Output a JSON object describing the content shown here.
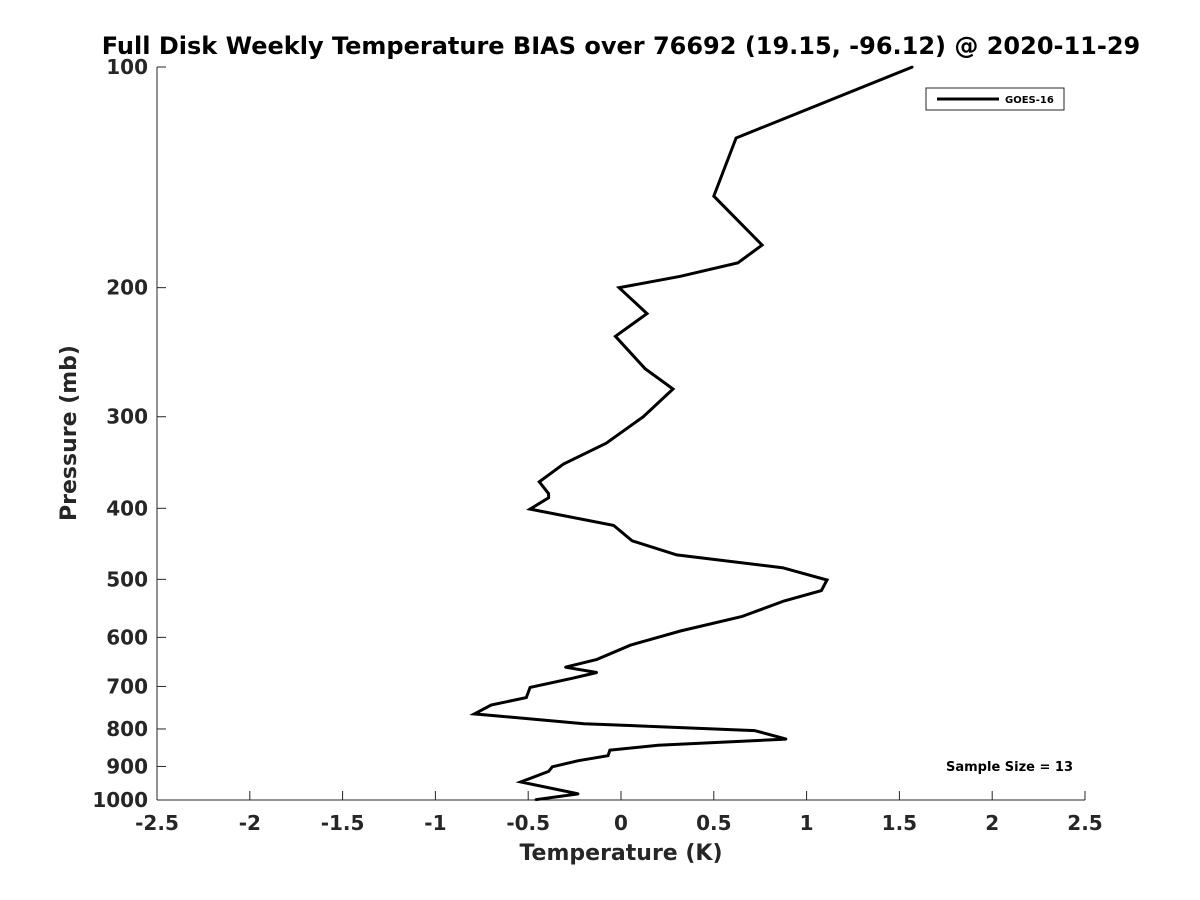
{
  "chart_data": {
    "type": "line",
    "title": "Full Disk Weekly Temperature BIAS over 76692 (19.15, -96.12) @ 2020-11-29",
    "xlabel": "Temperature (K)",
    "ylabel": "Pressure (mb)",
    "xlim": [
      -2.5,
      2.5
    ],
    "ylim": [
      100,
      1000
    ],
    "y_scale": "log",
    "y_reversed": true,
    "grid": false,
    "legend_position": "top-right",
    "x_ticks": [
      "-2.5",
      "-2",
      "-1.5",
      "-1",
      "-0.5",
      "0",
      "0.5",
      "1",
      "1.5",
      "2",
      "2.5"
    ],
    "y_ticks": [
      "100",
      "200",
      "300",
      "400",
      "500",
      "600",
      "700",
      "800",
      "900",
      "1000"
    ],
    "series": [
      {
        "name": "GOES-16",
        "color": "#000000",
        "points": [
          {
            "x": 1.57,
            "y": 100
          },
          {
            "x": 0.62,
            "y": 125
          },
          {
            "x": 0.5,
            "y": 150
          },
          {
            "x": 0.76,
            "y": 175
          },
          {
            "x": 0.63,
            "y": 185
          },
          {
            "x": 0.32,
            "y": 193
          },
          {
            "x": -0.01,
            "y": 200
          },
          {
            "x": 0.14,
            "y": 217
          },
          {
            "x": -0.03,
            "y": 233
          },
          {
            "x": 0.13,
            "y": 258
          },
          {
            "x": 0.28,
            "y": 275
          },
          {
            "x": 0.12,
            "y": 300
          },
          {
            "x": -0.08,
            "y": 326
          },
          {
            "x": -0.31,
            "y": 348
          },
          {
            "x": -0.44,
            "y": 368
          },
          {
            "x": -0.39,
            "y": 382
          },
          {
            "x": -0.39,
            "y": 387
          },
          {
            "x": -0.49,
            "y": 401
          },
          {
            "x": -0.04,
            "y": 422
          },
          {
            "x": 0.06,
            "y": 443
          },
          {
            "x": 0.3,
            "y": 463
          },
          {
            "x": 0.87,
            "y": 482
          },
          {
            "x": 1.11,
            "y": 501
          },
          {
            "x": 1.08,
            "y": 518
          },
          {
            "x": 0.88,
            "y": 535
          },
          {
            "x": 0.65,
            "y": 562
          },
          {
            "x": 0.32,
            "y": 588
          },
          {
            "x": 0.05,
            "y": 615
          },
          {
            "x": -0.13,
            "y": 643
          },
          {
            "x": -0.3,
            "y": 659
          },
          {
            "x": -0.13,
            "y": 670
          },
          {
            "x": -0.26,
            "y": 682
          },
          {
            "x": -0.49,
            "y": 702
          },
          {
            "x": -0.51,
            "y": 725
          },
          {
            "x": -0.7,
            "y": 742
          },
          {
            "x": -0.79,
            "y": 763
          },
          {
            "x": -0.2,
            "y": 787
          },
          {
            "x": 0.72,
            "y": 804
          },
          {
            "x": 0.89,
            "y": 826
          },
          {
            "x": 0.2,
            "y": 842
          },
          {
            "x": -0.06,
            "y": 855
          },
          {
            "x": -0.07,
            "y": 870
          },
          {
            "x": -0.23,
            "y": 884
          },
          {
            "x": -0.37,
            "y": 901
          },
          {
            "x": -0.39,
            "y": 914
          },
          {
            "x": -0.54,
            "y": 945
          },
          {
            "x": -0.23,
            "y": 981
          },
          {
            "x": -0.46,
            "y": 999
          }
        ]
      }
    ],
    "annotations": [
      "Sample Size = 13"
    ]
  }
}
